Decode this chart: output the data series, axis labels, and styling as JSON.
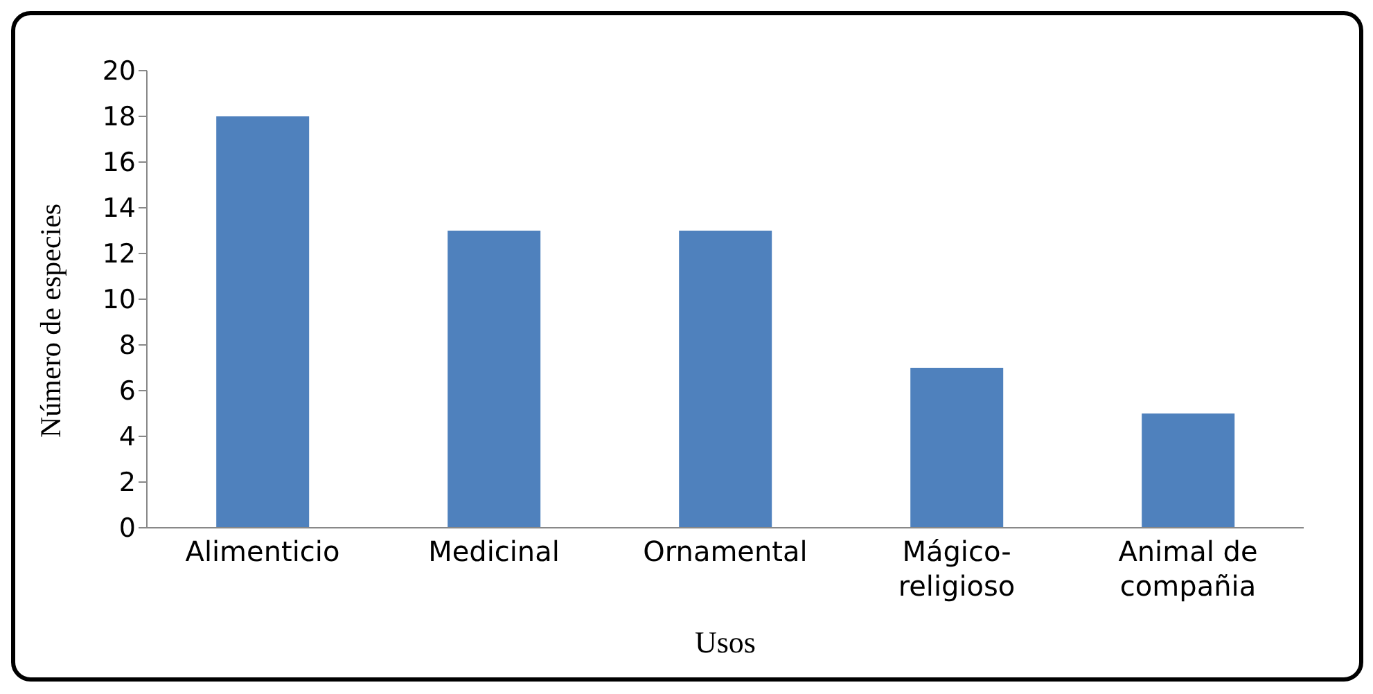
{
  "chart_data": {
    "type": "bar",
    "xlabel": "Usos",
    "ylabel": "Número de especies",
    "categories": [
      "Alimenticio",
      "Medicinal",
      "Ornamental",
      "Mágico-religioso",
      "Animal de compañia"
    ],
    "values": [
      18,
      13,
      13,
      7,
      5
    ],
    "color": "#4f81bd",
    "ylim": [
      0,
      20
    ],
    "yticks": [
      0,
      2,
      4,
      6,
      8,
      10,
      12,
      14,
      16,
      18,
      20
    ],
    "grid": false,
    "legend": false
  }
}
